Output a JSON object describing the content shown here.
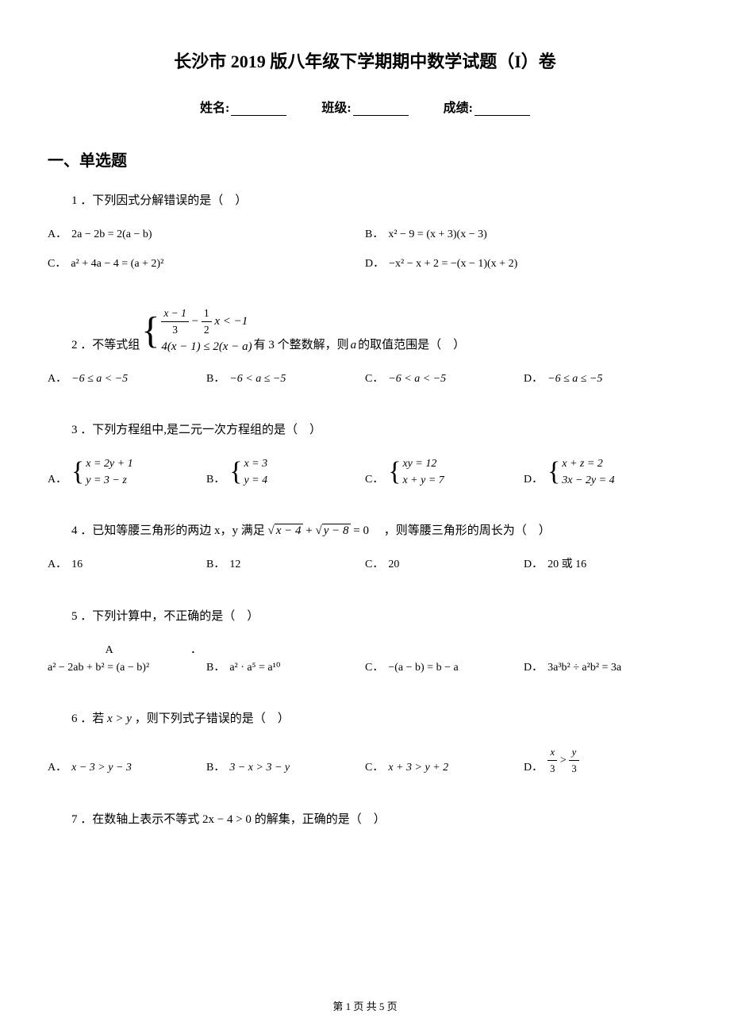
{
  "title": "长沙市 2019 版八年级下学期期中数学试题（I）卷",
  "info": {
    "name_label": "姓名:",
    "class_label": "班级:",
    "score_label": "成绩:"
  },
  "section1": "一、单选题",
  "q1": {
    "text": "1 ．下列因式分解错误的是（　）",
    "a": "2a − 2b = 2(a − b)",
    "b": "x² − 9 = (x + 3)(x − 3)",
    "c": "a² + 4a − 4 = (a + 2)²",
    "d": "−x² − x + 2 = −(x − 1)(x + 2)"
  },
  "q2": {
    "prefix": "2 ．不等式组",
    "line1_a": "x − 1",
    "line1_b": "3",
    "line1_c": "1",
    "line1_d": "2",
    "line1_e": "x < −1",
    "line2": "4(x − 1) ≤ 2(x − a)",
    "suffix_a": "有 3 个整数解，则",
    "suffix_var": "a",
    "suffix_b": "的取值范围是（　）",
    "a": "−6 ≤ a < −5",
    "b": "−6 < a ≤ −5",
    "c": "−6 < a < −5",
    "d": "−6 ≤ a ≤ −5"
  },
  "q3": {
    "text": "3 ．下列方程组中,是二元一次方程组的是（　）",
    "a1": "x = 2y + 1",
    "a2": "y = 3 − z",
    "b1": "x = 3",
    "b2": "y = 4",
    "c1": "xy = 12",
    "c2": "x + y = 7",
    "d1": "x + z = 2",
    "d2": "3x − 2y = 4"
  },
  "q4": {
    "prefix": "4 ．已知等腰三角形的两边 x，y 满足",
    "rad1": "x − 4",
    "plus": " + ",
    "rad2": "y − 8",
    "eq": " = 0",
    "suffix": "　，则等腰三角形的周长为（　）",
    "a": "16",
    "b": "12",
    "c": "20",
    "d": "20 或 16"
  },
  "q5": {
    "text": "5 ．下列计算中，不正确的是（　）",
    "a_label": "A　　　　　　　．",
    "a": "a² − 2ab + b² = (a − b)²",
    "b": "a² · a⁵ = a¹⁰",
    "c": "−(a − b) = b − a",
    "d": "3a³b² ÷ a²b² = 3a"
  },
  "q6": {
    "prefix": "6 ．若",
    "cond": "x > y",
    "suffix": "，则下列式子错误的是（　）",
    "a": "x − 3 > y − 3",
    "b": "3 − x > 3 − y",
    "c": "x + 3 > y + 2",
    "d_num1": "x",
    "d_den1": "3",
    "d_gt": " > ",
    "d_num2": "y",
    "d_den2": "3"
  },
  "q7": {
    "prefix": "7 ．在数轴上表示不等式",
    "expr": "2x − 4 > 0",
    "suffix": "的解集，正确的是（　）"
  },
  "labels": {
    "A": "A．",
    "B": "B．",
    "C": "C．",
    "D": "D．"
  },
  "footer": "第 1 页 共 5 页"
}
